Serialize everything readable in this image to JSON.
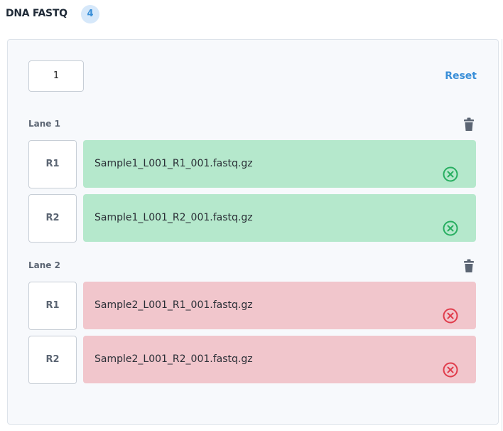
{
  "header": {
    "title": "DNA FASTQ",
    "count": "4"
  },
  "panel": {
    "lane_count_input": "1",
    "reset": "Reset",
    "lanes": [
      {
        "label": "Lane 1",
        "files": [
          {
            "read": "R1",
            "name": "Sample1_L001_R1_001.fastq.gz"
          },
          {
            "read": "R2",
            "name": "Sample1_L001_R2_001.fastq.gz"
          }
        ]
      },
      {
        "label": "Lane 2",
        "files": [
          {
            "read": "R1",
            "name": "Sample2_L001_R1_001.fastq.gz"
          },
          {
            "read": "R2",
            "name": "Sample2_L001_R2_001.fastq.gz"
          }
        ]
      }
    ]
  }
}
